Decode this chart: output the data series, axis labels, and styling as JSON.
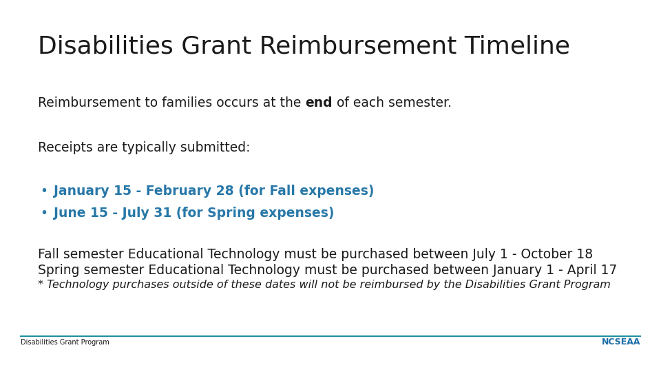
{
  "title": "Disabilities Grant Reimbursement Timeline",
  "title_fontsize": 26,
  "bg_color": "#ffffff",
  "text_color": "#1a1a1a",
  "blue_color": "#2878A8",
  "line1_pre": "Reimbursement to families occurs at the ",
  "line1_bold": "end",
  "line1_post": " of each semester.",
  "line2": "Receipts are typically submitted:",
  "bullet1": "January 15 - February 28 (for Fall expenses)",
  "bullet2": "June 15 - July 31 (for Spring expenses)",
  "para1": "Fall semester Educational Technology must be purchased between July 1 - October 18",
  "para2": "Spring semester Educational Technology must be purchased between January 1 - April 17",
  "para3": "* Technology purchases outside of these dates will not be reimbursed by the Disabilities Grant Program",
  "footer_left": "Disabilities Grant Program",
  "line_color": "#2090A0",
  "footer_fontsize": 7,
  "body_fontsize": 13.5,
  "body_font": "DejaVu Sans",
  "title_font": "DejaVu Sans"
}
